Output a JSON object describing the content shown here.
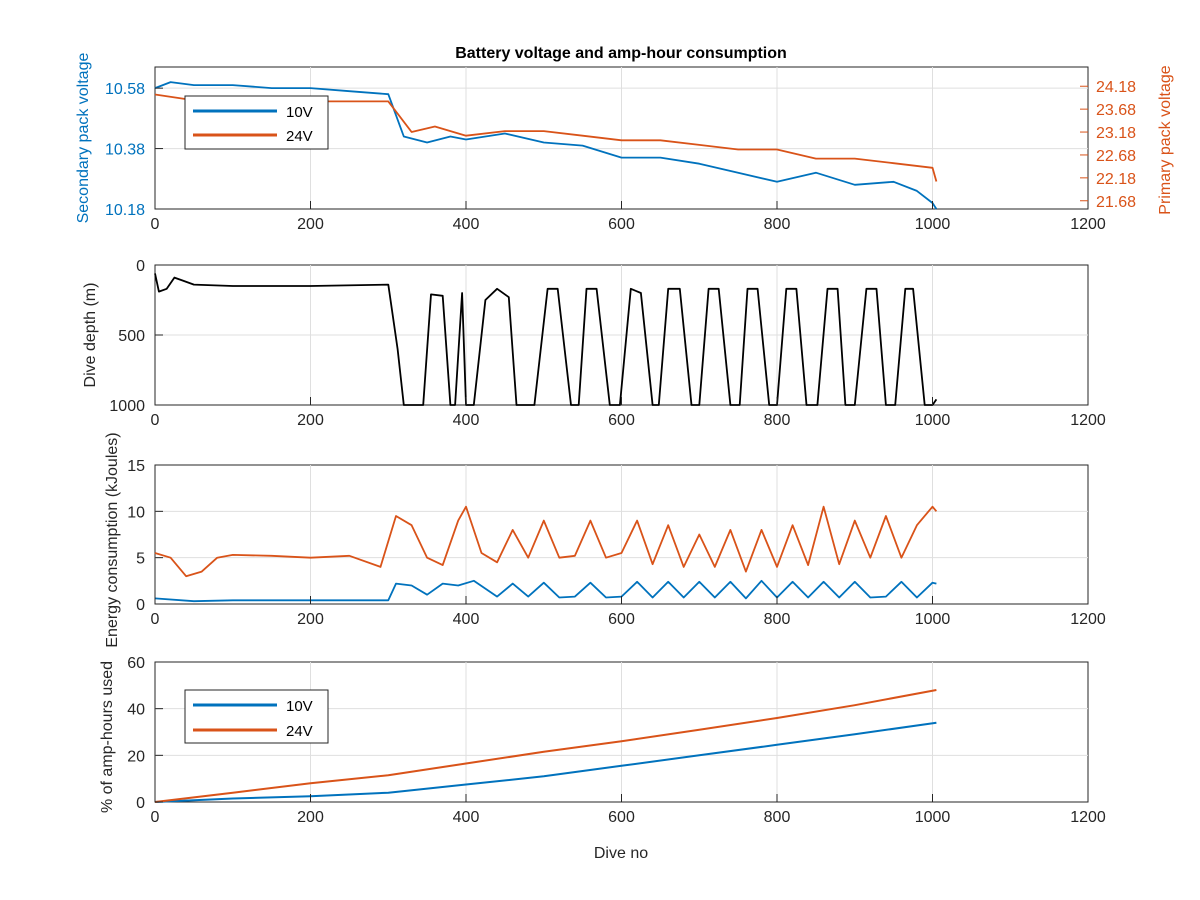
{
  "figure_title": "Battery voltage and amp-hour consumption",
  "colors": {
    "v10": "#0072BD",
    "v24": "#D95319",
    "depth": "#000000",
    "axis": "#262626",
    "grid": "#dfdfdf"
  },
  "chart_data": [
    {
      "type": "line",
      "title": "Battery voltage and amp-hour consumption",
      "xlabel": "",
      "ylabel": "Secondary pack voltage",
      "y2label": "Primary pack voltage",
      "xlim": [
        0,
        1200
      ],
      "xticks": [
        0,
        200,
        400,
        600,
        800,
        1000,
        1200
      ],
      "ylim": [
        10.18,
        10.65
      ],
      "yticks": [
        10.18,
        10.38,
        10.58
      ],
      "y2lim": [
        21.5,
        24.6
      ],
      "y2ticks": [
        21.68,
        22.18,
        22.68,
        23.18,
        23.68,
        24.18
      ],
      "grid": true,
      "legend": "upper-left",
      "series": [
        {
          "name": "10V",
          "axis": "left",
          "color": "#0072BD",
          "x": [
            0,
            20,
            50,
            100,
            150,
            200,
            250,
            300,
            320,
            350,
            380,
            400,
            450,
            500,
            550,
            600,
            650,
            700,
            750,
            800,
            850,
            900,
            950,
            980,
            1000,
            1005
          ],
          "y": [
            10.58,
            10.6,
            10.59,
            10.59,
            10.58,
            10.58,
            10.57,
            10.56,
            10.42,
            10.4,
            10.42,
            10.41,
            10.43,
            10.4,
            10.39,
            10.35,
            10.35,
            10.33,
            10.3,
            10.27,
            10.3,
            10.26,
            10.27,
            10.24,
            10.2,
            10.18
          ]
        },
        {
          "name": "24V",
          "axis": "right",
          "color": "#D95319",
          "x": [
            0,
            40,
            70,
            150,
            250,
            300,
            330,
            360,
            400,
            450,
            500,
            550,
            600,
            650,
            700,
            750,
            800,
            850,
            900,
            950,
            1000,
            1005
          ],
          "y": [
            24.0,
            23.9,
            23.8,
            23.85,
            23.85,
            23.85,
            23.18,
            23.3,
            23.1,
            23.2,
            23.2,
            23.1,
            23.0,
            23.0,
            22.9,
            22.8,
            22.8,
            22.6,
            22.6,
            22.5,
            22.4,
            22.1
          ]
        }
      ]
    },
    {
      "type": "line",
      "xlabel": "",
      "ylabel": "Dive depth (m)",
      "xlim": [
        0,
        1200
      ],
      "xticks": [
        0,
        200,
        400,
        600,
        800,
        1000,
        1200
      ],
      "ylim": [
        0,
        1000
      ],
      "yreversed": true,
      "yticks": [
        0,
        500,
        1000
      ],
      "ytick_labels": [
        "0",
        "500",
        "1000"
      ],
      "grid": true,
      "series": [
        {
          "color": "#000000",
          "x": [
            0,
            5,
            15,
            25,
            35,
            50,
            100,
            200,
            300,
            312,
            320,
            330,
            345,
            355,
            370,
            380,
            386,
            395,
            400,
            410,
            425,
            440,
            455,
            465,
            488,
            505,
            518,
            535,
            545,
            555,
            568,
            585,
            598,
            612,
            625,
            640,
            648,
            660,
            675,
            690,
            700,
            712,
            725,
            740,
            752,
            762,
            775,
            790,
            800,
            812,
            825,
            838,
            852,
            865,
            878,
            888,
            900,
            915,
            928,
            940,
            952,
            965,
            975,
            990,
            1000,
            1005
          ],
          "y": [
            60,
            190,
            170,
            90,
            110,
            140,
            150,
            150,
            140,
            600,
            1000,
            1000,
            1000,
            210,
            220,
            1000,
            1000,
            200,
            1000,
            1000,
            250,
            170,
            230,
            1000,
            1000,
            170,
            170,
            1000,
            1000,
            170,
            170,
            1000,
            1000,
            170,
            200,
            1000,
            1000,
            170,
            170,
            1000,
            1000,
            170,
            170,
            1000,
            1000,
            170,
            170,
            1000,
            1000,
            170,
            170,
            1000,
            1000,
            170,
            170,
            1000,
            1000,
            170,
            170,
            1000,
            1000,
            170,
            170,
            1000,
            1000,
            960
          ]
        }
      ]
    },
    {
      "type": "line",
      "xlabel": "",
      "ylabel": "Energy consumption (kJoules)",
      "xlim": [
        0,
        1200
      ],
      "xticks": [
        0,
        200,
        400,
        600,
        800,
        1000,
        1200
      ],
      "ylim": [
        0,
        15
      ],
      "yticks": [
        0,
        5,
        10,
        15
      ],
      "grid": true,
      "series": [
        {
          "color": "#D95319",
          "x": [
            0,
            20,
            40,
            60,
            80,
            100,
            150,
            200,
            250,
            290,
            310,
            330,
            350,
            370,
            390,
            400,
            420,
            440,
            460,
            480,
            500,
            520,
            540,
            560,
            580,
            600,
            620,
            640,
            660,
            680,
            700,
            720,
            740,
            760,
            780,
            800,
            820,
            840,
            860,
            880,
            900,
            920,
            940,
            960,
            980,
            1000,
            1005
          ],
          "y": [
            5.5,
            5.0,
            3.0,
            3.5,
            5.0,
            5.3,
            5.2,
            5.0,
            5.2,
            4.0,
            9.5,
            8.5,
            5.0,
            4.2,
            9.0,
            10.5,
            5.5,
            4.5,
            8.0,
            5.0,
            9.0,
            5.0,
            5.2,
            9.0,
            5.0,
            5.5,
            9.0,
            4.3,
            8.5,
            4.0,
            7.5,
            4.0,
            8.0,
            3.5,
            8.0,
            4.0,
            8.5,
            4.2,
            10.5,
            4.3,
            9.0,
            5.0,
            9.5,
            5.0,
            8.5,
            10.5,
            10.0
          ]
        },
        {
          "color": "#0072BD",
          "x": [
            0,
            50,
            100,
            200,
            300,
            310,
            330,
            350,
            370,
            390,
            410,
            440,
            460,
            480,
            500,
            520,
            540,
            560,
            580,
            600,
            620,
            640,
            660,
            680,
            700,
            720,
            740,
            760,
            780,
            800,
            820,
            840,
            860,
            880,
            900,
            920,
            940,
            960,
            980,
            1000,
            1005
          ],
          "y": [
            0.6,
            0.3,
            0.4,
            0.4,
            0.4,
            2.2,
            2.0,
            1.0,
            2.2,
            2.0,
            2.5,
            0.8,
            2.2,
            0.8,
            2.3,
            0.7,
            0.8,
            2.3,
            0.7,
            0.8,
            2.4,
            0.7,
            2.4,
            0.7,
            2.4,
            0.7,
            2.4,
            0.6,
            2.5,
            0.7,
            2.4,
            0.7,
            2.4,
            0.7,
            2.4,
            0.7,
            0.8,
            2.4,
            0.7,
            2.3,
            2.2
          ]
        }
      ]
    },
    {
      "type": "line",
      "xlabel": "Dive no",
      "ylabel": "% of amp-hours used",
      "xlim": [
        0,
        1200
      ],
      "xticks": [
        0,
        200,
        400,
        600,
        800,
        1000,
        1200
      ],
      "ylim": [
        0,
        60
      ],
      "yticks": [
        0,
        20,
        40,
        60
      ],
      "grid": true,
      "legend": "upper-left",
      "series": [
        {
          "name": "10V",
          "color": "#0072BD",
          "x": [
            0,
            100,
            200,
            300,
            400,
            500,
            600,
            700,
            800,
            900,
            1005
          ],
          "y": [
            0,
            1.5,
            2.5,
            4,
            7.5,
            11,
            15.5,
            20,
            24.5,
            29,
            34
          ]
        },
        {
          "name": "24V",
          "color": "#D95319",
          "x": [
            0,
            100,
            200,
            300,
            400,
            500,
            600,
            700,
            800,
            900,
            1005
          ],
          "y": [
            0,
            4,
            8,
            11.5,
            16.5,
            21.5,
            26,
            31,
            36,
            41.5,
            48
          ]
        }
      ]
    }
  ]
}
